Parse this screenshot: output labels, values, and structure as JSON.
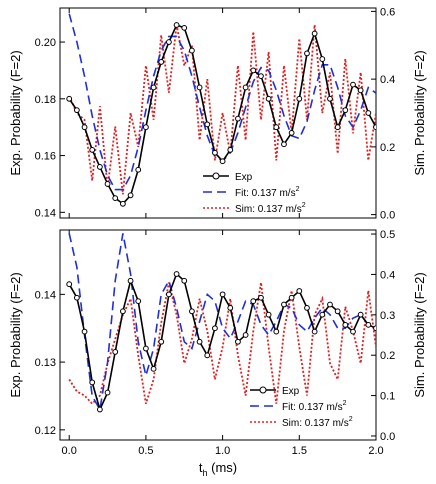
{
  "chart_data": [
    {
      "type": "line",
      "panel": "top",
      "title": "",
      "xlabel": "",
      "ylabel": "Exp. Probability (F=2)",
      "y2label": "Sim. Probability (F=2)",
      "xlim": [
        -0.06,
        2.0
      ],
      "ylim": [
        0.138,
        0.212
      ],
      "y2lim": [
        -0.01,
        0.61
      ],
      "x_ticks": [
        "0.0",
        "0.5",
        "1.0",
        "1.5",
        "2.0"
      ],
      "x_tick_labels_shown": false,
      "y_ticks": [
        0.14,
        0.16,
        0.18,
        0.2
      ],
      "y_tick_labels": [
        "0.14",
        "0.16",
        "0.18",
        "0.20"
      ],
      "y2_ticks": [
        0.0,
        0.2,
        0.4,
        0.6
      ],
      "y2_tick_labels": [
        "0.0",
        "0.2",
        "0.4",
        "0.6"
      ],
      "grid": false,
      "legend_placement": "bottom-center",
      "legend": [
        {
          "label": "Exp",
          "sup": "",
          "style": "black-line-circles"
        },
        {
          "label": "Fit: 0.137 m/s",
          "sup": "2",
          "style": "blue-dashed"
        },
        {
          "label": "Sim: 0.137 m/s",
          "sup": "2",
          "style": "red-dotted"
        }
      ],
      "series": [
        {
          "name": "Exp",
          "axis": "left",
          "color": "#000000",
          "marker": "circle",
          "x": [
            0.0,
            0.05,
            0.1,
            0.15,
            0.2,
            0.25,
            0.3,
            0.35,
            0.4,
            0.45,
            0.5,
            0.55,
            0.6,
            0.65,
            0.7,
            0.75,
            0.8,
            0.85,
            0.9,
            0.95,
            1.0,
            1.05,
            1.1,
            1.15,
            1.2,
            1.25,
            1.3,
            1.35,
            1.4,
            1.45,
            1.5,
            1.55,
            1.6,
            1.65,
            1.7,
            1.75,
            1.8,
            1.85,
            1.9,
            1.95,
            2.0
          ],
          "y": [
            0.18,
            0.176,
            0.17,
            0.162,
            0.156,
            0.15,
            0.145,
            0.143,
            0.146,
            0.155,
            0.17,
            0.184,
            0.193,
            0.2,
            0.206,
            0.205,
            0.197,
            0.184,
            0.171,
            0.161,
            0.158,
            0.162,
            0.173,
            0.184,
            0.19,
            0.188,
            0.18,
            0.17,
            0.164,
            0.168,
            0.18,
            0.196,
            0.203,
            0.194,
            0.18,
            0.17,
            0.176,
            0.185,
            0.183,
            0.175,
            0.17
          ]
        },
        {
          "name": "Fit: 0.137 m/s2",
          "axis": "left",
          "color": "#1f2fd8",
          "dash": "dashed",
          "x": [
            0.0,
            0.05,
            0.1,
            0.15,
            0.2,
            0.25,
            0.3,
            0.35,
            0.4,
            0.45,
            0.5,
            0.55,
            0.6,
            0.65,
            0.7,
            0.75,
            0.8,
            0.85,
            0.9,
            0.95,
            1.0,
            1.05,
            1.1,
            1.15,
            1.2,
            1.25,
            1.3,
            1.35,
            1.4,
            1.45,
            1.5,
            1.55,
            1.6,
            1.65,
            1.7,
            1.75,
            1.8,
            1.85,
            1.9,
            1.95,
            2.0
          ],
          "y": [
            0.21,
            0.2,
            0.188,
            0.174,
            0.162,
            0.153,
            0.148,
            0.148,
            0.153,
            0.163,
            0.176,
            0.188,
            0.197,
            0.202,
            0.202,
            0.197,
            0.188,
            0.177,
            0.167,
            0.16,
            0.158,
            0.161,
            0.168,
            0.177,
            0.186,
            0.191,
            0.19,
            0.183,
            0.174,
            0.167,
            0.166,
            0.172,
            0.183,
            0.192,
            0.192,
            0.184,
            0.174,
            0.17,
            0.176,
            0.184,
            0.182
          ]
        },
        {
          "name": "Sim: 0.137 m/s2",
          "axis": "right",
          "color": "#e02020",
          "dash": "dotted",
          "x": [
            0.0,
            0.05,
            0.1,
            0.15,
            0.2,
            0.25,
            0.3,
            0.35,
            0.4,
            0.45,
            0.5,
            0.55,
            0.6,
            0.65,
            0.7,
            0.75,
            0.8,
            0.85,
            0.9,
            0.95,
            1.0,
            1.05,
            1.1,
            1.15,
            1.2,
            1.25,
            1.3,
            1.35,
            1.4,
            1.45,
            1.5,
            1.55,
            1.6,
            1.65,
            1.7,
            1.75,
            1.8,
            1.85,
            1.9,
            1.95,
            2.0
          ],
          "y": [
            0.35,
            0.3,
            0.28,
            0.1,
            0.32,
            0.08,
            0.26,
            0.06,
            0.3,
            0.2,
            0.44,
            0.28,
            0.53,
            0.36,
            0.56,
            0.44,
            0.5,
            0.22,
            0.4,
            0.16,
            0.3,
            0.18,
            0.44,
            0.22,
            0.54,
            0.28,
            0.48,
            0.16,
            0.44,
            0.24,
            0.52,
            0.28,
            0.56,
            0.3,
            0.42,
            0.18,
            0.46,
            0.24,
            0.42,
            0.16,
            0.3
          ]
        }
      ]
    },
    {
      "type": "line",
      "panel": "bottom",
      "title": "",
      "xlabel": "t",
      "xlabel_sub": "h",
      "xlabel_unit": " (ms)",
      "ylabel": "Exp. Probability (F=2)",
      "y2label": "Sim. Probability (F=2)",
      "xlim": [
        -0.06,
        2.0
      ],
      "ylim": [
        0.1185,
        0.1495
      ],
      "y2lim": [
        -0.01,
        0.51
      ],
      "x_ticks": [
        0.0,
        0.5,
        1.0,
        1.5,
        2.0
      ],
      "x_tick_labels": [
        "0.0",
        "0.5",
        "1.0",
        "1.5",
        "2.0"
      ],
      "y_ticks": [
        0.12,
        0.13,
        0.14
      ],
      "y_tick_labels": [
        "0.12",
        "0.13",
        "0.14"
      ],
      "y2_ticks": [
        0.0,
        0.1,
        0.2,
        0.3,
        0.4,
        0.5
      ],
      "y2_tick_labels": [
        "0.0",
        "0.1",
        "0.2",
        "0.3",
        "0.4",
        "0.5"
      ],
      "grid": false,
      "legend_placement": "bottom-right",
      "legend": [
        {
          "label": "Exp",
          "sup": "",
          "style": "black-line-circles"
        },
        {
          "label": "Fit: 0.137 m/s",
          "sup": "2",
          "style": "blue-dashed"
        },
        {
          "label": "Sim: 0.137 m/s",
          "sup": "2",
          "style": "red-dotted"
        }
      ],
      "series": [
        {
          "name": "Exp",
          "axis": "left",
          "color": "#000000",
          "marker": "circle",
          "x": [
            0.0,
            0.05,
            0.1,
            0.15,
            0.2,
            0.25,
            0.3,
            0.35,
            0.4,
            0.45,
            0.5,
            0.55,
            0.6,
            0.65,
            0.7,
            0.75,
            0.8,
            0.85,
            0.9,
            0.95,
            1.0,
            1.05,
            1.1,
            1.15,
            1.2,
            1.25,
            1.3,
            1.35,
            1.4,
            1.45,
            1.5,
            1.55,
            1.6,
            1.65,
            1.7,
            1.75,
            1.8,
            1.85,
            1.9,
            1.95,
            2.0
          ],
          "y": [
            0.1415,
            0.1395,
            0.1345,
            0.127,
            0.123,
            0.1255,
            0.1315,
            0.1375,
            0.142,
            0.139,
            0.132,
            0.129,
            0.133,
            0.14,
            0.143,
            0.142,
            0.1375,
            0.133,
            0.131,
            0.135,
            0.14,
            0.138,
            0.133,
            0.134,
            0.139,
            0.1395,
            0.137,
            0.1345,
            0.1385,
            0.1395,
            0.1405,
            0.138,
            0.1345,
            0.137,
            0.1385,
            0.1375,
            0.1355,
            0.1345,
            0.137,
            0.1355,
            0.135
          ]
        },
        {
          "name": "Fit: 0.137 m/s2",
          "axis": "left",
          "color": "#1f2fd8",
          "dash": "dashed",
          "x": [
            0.0,
            0.05,
            0.1,
            0.15,
            0.2,
            0.25,
            0.3,
            0.35,
            0.4,
            0.45,
            0.5,
            0.55,
            0.6,
            0.65,
            0.7,
            0.75,
            0.8,
            0.85,
            0.9,
            0.95,
            1.0,
            1.05,
            1.1,
            1.15,
            1.2,
            1.25,
            1.3,
            1.35,
            1.4,
            1.45,
            1.5,
            1.55,
            1.6,
            1.65,
            1.7,
            1.75,
            1.8,
            1.85,
            1.9,
            1.95,
            2.0
          ],
          "y": [
            0.149,
            0.144,
            0.134,
            0.125,
            0.123,
            0.13,
            0.142,
            0.149,
            0.143,
            0.133,
            0.128,
            0.132,
            0.14,
            0.142,
            0.138,
            0.133,
            0.132,
            0.136,
            0.14,
            0.139,
            0.135,
            0.1335,
            0.136,
            0.139,
            0.1385,
            0.1355,
            0.134,
            0.136,
            0.1385,
            0.138,
            0.1355,
            0.1345,
            0.1365,
            0.138,
            0.137,
            0.135,
            0.135,
            0.1365,
            0.137,
            0.1355,
            0.135
          ]
        },
        {
          "name": "Sim: 0.137 m/s2",
          "axis": "right",
          "color": "#e02020",
          "dash": "dotted",
          "x": [
            0.0,
            0.05,
            0.1,
            0.15,
            0.2,
            0.25,
            0.3,
            0.35,
            0.4,
            0.45,
            0.5,
            0.55,
            0.6,
            0.65,
            0.7,
            0.75,
            0.8,
            0.85,
            0.9,
            0.95,
            1.0,
            1.05,
            1.1,
            1.15,
            1.2,
            1.25,
            1.3,
            1.35,
            1.4,
            1.45,
            1.5,
            1.55,
            1.6,
            1.65,
            1.7,
            1.75,
            1.8,
            1.85,
            1.9,
            1.95,
            2.0
          ],
          "y": [
            0.14,
            0.11,
            0.1,
            0.08,
            0.1,
            0.18,
            0.24,
            0.3,
            0.34,
            0.2,
            0.08,
            0.14,
            0.28,
            0.38,
            0.3,
            0.18,
            0.24,
            0.34,
            0.26,
            0.14,
            0.22,
            0.34,
            0.2,
            0.1,
            0.26,
            0.38,
            0.22,
            0.08,
            0.26,
            0.36,
            0.22,
            0.1,
            0.3,
            0.34,
            0.18,
            0.14,
            0.32,
            0.26,
            0.18,
            0.36,
            0.22
          ]
        }
      ]
    }
  ]
}
